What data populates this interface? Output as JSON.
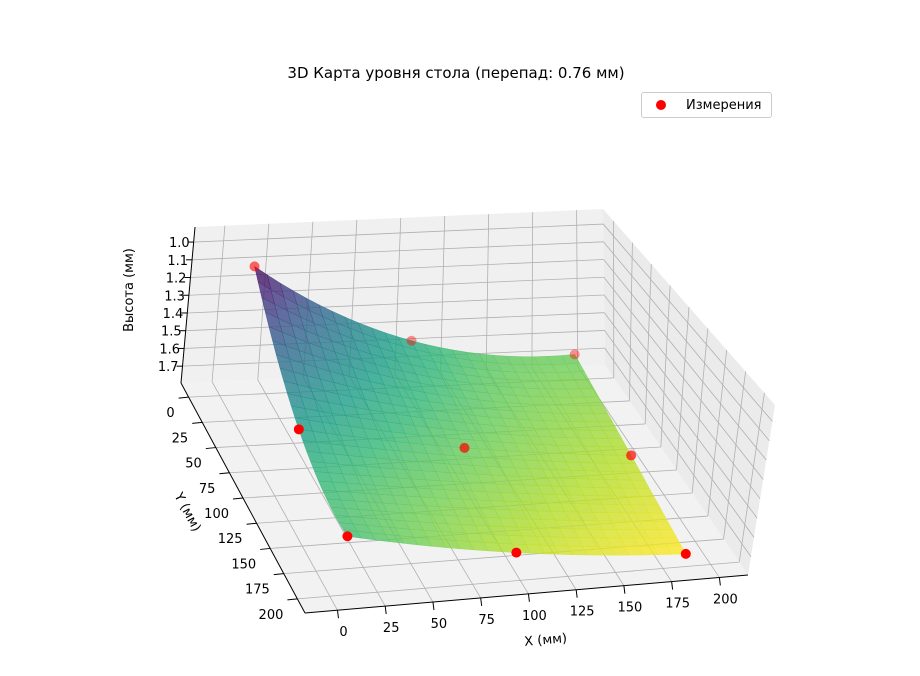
{
  "chart_data": {
    "type": "surface3d",
    "title": "3D Карта уровня стола (перепад: 0.76 мм)",
    "xlabel": "X (мм)",
    "ylabel": "Y (мм)",
    "zlabel": "Высота (мм)",
    "xlim": [
      -17,
      215
    ],
    "ylim": [
      -14,
      214
    ],
    "zlim": [
      0.915,
      1.795
    ],
    "z_inverted": true,
    "xticks": [
      "0",
      "25",
      "50",
      "75",
      "100",
      "125",
      "150",
      "175",
      "200"
    ],
    "yticks": [
      "0",
      "25",
      "50",
      "75",
      "100",
      "125",
      "150",
      "175",
      "200"
    ],
    "zticks": [
      "1.0",
      "1.1",
      "1.2",
      "1.3",
      "1.4",
      "1.5",
      "1.6",
      "1.7"
    ],
    "grid": true,
    "colormap": "viridis",
    "legend": {
      "position": "top-right",
      "entries": [
        "Измерения"
      ]
    },
    "measurements": {
      "name": "Измерения",
      "color": "#ff0000",
      "x": [
        10,
        100,
        190
      ],
      "y": [
        10,
        100,
        190
      ],
      "z": [
        [
          1.02,
          1.48,
          1.6
        ],
        [
          1.44,
          1.6,
          1.7
        ],
        [
          1.54,
          1.7,
          1.78
        ]
      ]
    }
  }
}
